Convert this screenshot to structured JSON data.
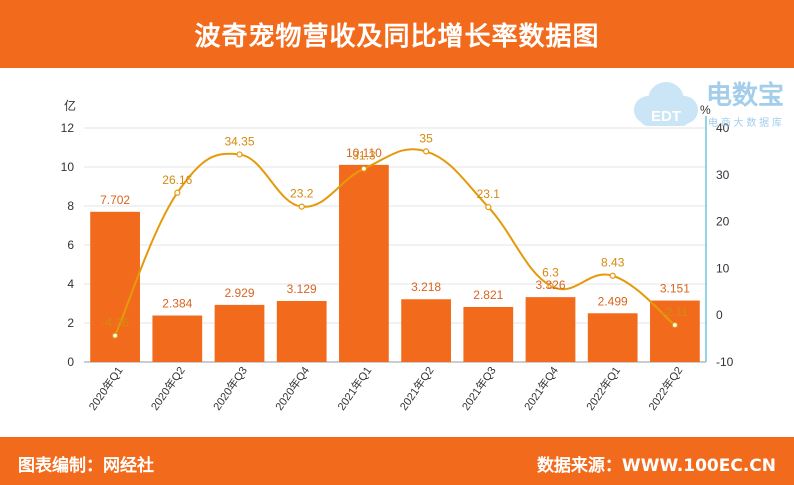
{
  "header": {
    "title": "波奇宠物营收及同比增长率数据图"
  },
  "footer": {
    "editor": "图表编制：网经社",
    "source": "数据来源：WWW.100EC.CN"
  },
  "watermark": {
    "brand": "电数宝",
    "tagline": "电 商 大 数 据 库",
    "logo_text": "EDT"
  },
  "colors": {
    "header": "#f26b1d",
    "bar": "#f26b1d",
    "bar_label": "#d9651f",
    "line": "#e59a0c",
    "line_label": "#d58a10",
    "axis_right": "#2aa9c9"
  },
  "chart_data": {
    "type": "bar+line",
    "categories": [
      "2020年Q1",
      "2020年Q2",
      "2020年Q3",
      "2020年Q4",
      "2021年Q1",
      "2021年Q2",
      "2021年Q3",
      "2021年Q4",
      "2022年Q1",
      "2022年Q2"
    ],
    "left_axis": {
      "unit": "亿",
      "min": 0,
      "max": 12,
      "ticks": [
        "0",
        "2",
        "4",
        "6",
        "8",
        "10",
        "12"
      ]
    },
    "right_axis": {
      "unit": "%",
      "min": -10,
      "max": 40,
      "ticks": [
        "-10",
        "0",
        "10",
        "20",
        "30",
        "40"
      ]
    },
    "series": [
      {
        "kind": "bar",
        "axis": "left",
        "values": [
          7.702,
          2.384,
          2.929,
          3.129,
          10.11,
          3.218,
          2.821,
          3.326,
          2.499,
          3.151
        ],
        "labels": [
          "7.702",
          "2.384",
          "2.929",
          "3.129",
          "10.110",
          "3.218",
          "2.821",
          "3.326",
          "2.499",
          "3.151"
        ]
      },
      {
        "kind": "line",
        "axis": "right",
        "values": [
          -4.36,
          26.16,
          34.35,
          23.2,
          31.3,
          35,
          23.1,
          6.3,
          8.43,
          -2.11
        ],
        "labels": [
          "-4.36",
          "26.16",
          "34.35",
          "23.2",
          "31.3",
          "35",
          "23.1",
          "6.3",
          "8.43",
          "-2.11"
        ]
      }
    ],
    "grid": true
  }
}
